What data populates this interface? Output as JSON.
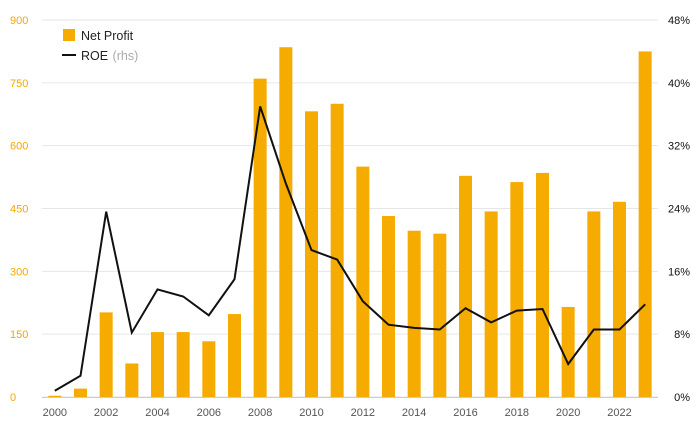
{
  "chart_data": {
    "type": "bar",
    "x": [
      "2000",
      "2001",
      "2002",
      "2003",
      "2004",
      "2005",
      "2006",
      "2007",
      "2008",
      "2009",
      "2010",
      "2011",
      "2012",
      "2013",
      "2014",
      "2015",
      "2016",
      "2017",
      "2018",
      "2019",
      "2020",
      "2021",
      "2022",
      "2023"
    ],
    "x_tick_labels": [
      "2000",
      "2002",
      "2004",
      "2006",
      "2008",
      "2010",
      "2012",
      "2014",
      "2016",
      "2018",
      "2020",
      "2022"
    ],
    "series": [
      {
        "name": "Net Profit",
        "type": "bar",
        "axis": "left",
        "color": "#f5ab00",
        "values": [
          3,
          20,
          202,
          80,
          155,
          155,
          133,
          198,
          760,
          835,
          682,
          700,
          550,
          432,
          397,
          390,
          528,
          443,
          513,
          535,
          215,
          443,
          466,
          825
        ]
      },
      {
        "name": "ROE",
        "name_note": "(rhs)",
        "type": "line",
        "axis": "right",
        "color": "#111111",
        "values": [
          0.8,
          2.7,
          23.6,
          8.2,
          13.7,
          12.8,
          10.4,
          15.0,
          37.0,
          27.2,
          18.7,
          17.5,
          12.2,
          9.2,
          8.8,
          8.6,
          11.3,
          9.5,
          11.0,
          11.2,
          4.2,
          8.6,
          8.6,
          11.8
        ]
      }
    ],
    "ylim_left": [
      0,
      900
    ],
    "yticks_left": [
      "0",
      "150",
      "300",
      "450",
      "600",
      "750",
      "900"
    ],
    "ylim_right": [
      0,
      48
    ],
    "yticks_right": [
      "0%",
      "8%",
      "16%",
      "24%",
      "32%",
      "40%",
      "48%"
    ],
    "grid": true,
    "legend_position": "top-left"
  }
}
